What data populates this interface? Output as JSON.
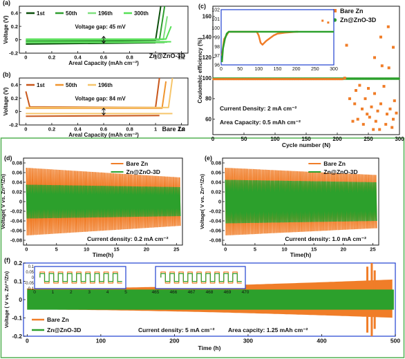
{
  "colors": {
    "bare": "#f07d28",
    "zno": "#2ca02c",
    "light_green": "#7ee07e",
    "mid_green": "#2e9e2e",
    "dark_green": "#0b4f0b",
    "lime": "#55e055",
    "dark_orange": "#c8561a",
    "orange": "#f0952e",
    "light_orange": "#f6c56a",
    "frame_green": "#52b052",
    "inset_blue": "#1f3fd0"
  },
  "chart_data": [
    {
      "panel": "(a)",
      "type": "line",
      "xlabel": "Areal Capacity (mAh cm⁻²)",
      "ylabel": "Voltage (V)",
      "xlim": [
        -0.05,
        1.25
      ],
      "ylim": [
        -0.2,
        0.5
      ],
      "xticks": [
        0.0,
        0.2,
        0.4,
        0.6,
        0.8,
        1.0,
        1.2
      ],
      "yticks": [
        -0.2,
        0.0,
        0.2,
        0.4
      ],
      "legend": [
        "1st",
        "50th",
        "196th",
        "300th"
      ],
      "annotation": "Voltage gap: 45 mV",
      "label": "Zn@ZnO-3D",
      "series": [
        {
          "name": "1st",
          "charge": [
            [
              0.0,
              -0.02
            ],
            [
              1.0,
              -0.005
            ],
            [
              1.04,
              0.5
            ]
          ],
          "discharge": [
            [
              0.0,
              -0.065
            ],
            [
              1.0,
              -0.045
            ]
          ]
        },
        {
          "name": "50th",
          "charge": [
            [
              0.0,
              -0.005
            ],
            [
              1.03,
              0.0
            ],
            [
              1.07,
              0.5
            ]
          ],
          "discharge": [
            [
              0.0,
              -0.045
            ],
            [
              1.07,
              -0.04
            ]
          ]
        },
        {
          "name": "196th",
          "charge": [
            [
              0.0,
              0.0
            ],
            [
              1.06,
              0.005
            ],
            [
              1.09,
              0.35
            ]
          ],
          "discharge": [
            [
              0.0,
              -0.04
            ],
            [
              1.09,
              -0.035
            ]
          ]
        },
        {
          "name": "300th",
          "charge": [
            [
              0.0,
              0.01
            ],
            [
              1.08,
              0.01
            ],
            [
              1.12,
              0.2
            ]
          ],
          "discharge": [
            [
              0.0,
              -0.03
            ],
            [
              1.12,
              -0.03
            ]
          ]
        }
      ]
    },
    {
      "panel": "(b)",
      "type": "line",
      "xlabel": "Areal Capacity (mAh cm⁻²)",
      "ylabel": "Voltage (V)",
      "xlim": [
        -0.05,
        1.25
      ],
      "ylim": [
        -0.2,
        0.5
      ],
      "xticks": [
        0.0,
        0.2,
        0.4,
        0.6,
        0.8,
        1.0,
        1.2
      ],
      "yticks": [
        -0.2,
        0.0,
        0.2,
        0.4
      ],
      "legend": [
        "1st",
        "50th",
        "196th"
      ],
      "annotation": "Voltage gap: 84 mV",
      "label": "Bare Zn",
      "series": [
        {
          "name": "1st",
          "charge": [
            [
              0.0,
              0.3
            ],
            [
              0.03,
              0.07
            ],
            [
              1.0,
              0.06
            ],
            [
              1.03,
              0.5
            ]
          ],
          "discharge": [
            [
              0.0,
              -0.07
            ],
            [
              1.03,
              -0.06
            ]
          ]
        },
        {
          "name": "50th",
          "charge": [
            [
              0.0,
              0.05
            ],
            [
              1.05,
              0.05
            ],
            [
              1.08,
              0.45
            ]
          ],
          "discharge": [
            [
              0.0,
              -0.03
            ],
            [
              1.08,
              -0.03
            ]
          ]
        },
        {
          "name": "196th",
          "charge": [
            [
              0.0,
              0.06
            ],
            [
              1.1,
              0.06
            ],
            [
              1.13,
              0.5
            ]
          ],
          "discharge": [
            [
              0.0,
              -0.03
            ],
            [
              1.13,
              -0.03
            ]
          ]
        }
      ]
    },
    {
      "panel": "(c)",
      "type": "scatter",
      "xlabel": "Cycle number (N)",
      "ylabel": "Coulombic efficiency (%)",
      "xlim": [
        0,
        300
      ],
      "ylim": [
        45,
        170
      ],
      "xticks": [
        0,
        50,
        100,
        150,
        200,
        250,
        300
      ],
      "yticks": [
        60,
        80,
        100,
        120,
        140,
        160
      ],
      "legend": [
        "Bare Zn",
        "Zn@ZnO-3D"
      ],
      "annotations": [
        "Current Density: 2 mA cm⁻²",
        "Area Capacity: 0.5 mAh cm⁻²"
      ],
      "series": [
        {
          "name": "Zn@ZnO-3D",
          "y_const": 99.5,
          "x_range": [
            1,
            300
          ]
        },
        {
          "name": "Bare Zn",
          "y_stable": 99.0,
          "x_stable": [
            1,
            210
          ],
          "scatter": [
            [
              212,
              100
            ],
            [
              215,
              132
            ],
            [
              220,
              80
            ],
            [
              225,
              58
            ],
            [
              228,
              75
            ],
            [
              230,
              88
            ],
            [
              233,
              60
            ],
            [
              236,
              93
            ],
            [
              240,
              70
            ],
            [
              242,
              55
            ],
            [
              245,
              80
            ],
            [
              248,
              65
            ],
            [
              250,
              90
            ],
            [
              252,
              62
            ],
            [
              255,
              72
            ],
            [
              258,
              50
            ],
            [
              260,
              85
            ],
            [
              262,
              58
            ],
            [
              265,
              68
            ],
            [
              268,
              50
            ],
            [
              270,
              75
            ],
            [
              272,
              112
            ],
            [
              275,
              92
            ],
            [
              278,
              55
            ],
            [
              280,
              65
            ],
            [
              283,
              110
            ],
            [
              285,
              70
            ],
            [
              288,
              52
            ],
            [
              290,
              60
            ],
            [
              292,
              78
            ],
            [
              295,
              66
            ],
            [
              270,
              140
            ],
            [
              282,
              150
            ],
            [
              260,
              120
            ],
            [
              290,
              130
            ]
          ]
        }
      ],
      "inset": {
        "xlim": [
          0,
          300
        ],
        "ylim": [
          96,
          102
        ],
        "xticks": [
          0,
          50,
          100,
          150,
          200,
          250,
          300
        ],
        "yticks": [
          96,
          97,
          98,
          99,
          100,
          101,
          102
        ],
        "zno": [
          [
            2,
            96.3
          ],
          [
            5,
            97.8
          ],
          [
            10,
            98.8
          ],
          [
            15,
            99.4
          ],
          [
            20,
            99.6
          ],
          [
            300,
            99.6
          ]
        ],
        "bare": [
          [
            2,
            97.0
          ],
          [
            8,
            98.8
          ],
          [
            20,
            99.6
          ],
          [
            95,
            99.6
          ],
          [
            100,
            99.2
          ],
          [
            105,
            98.4
          ],
          [
            110,
            98.2
          ],
          [
            120,
            98.6
          ],
          [
            140,
            99.2
          ],
          [
            150,
            99.4
          ],
          [
            170,
            99.5
          ],
          [
            200,
            99.6
          ],
          [
            205,
            99.6
          ]
        ],
        "bare_outliers": [
          [
            270,
            100.8
          ],
          [
            285,
            100.6
          ]
        ]
      }
    },
    {
      "panel": "(d)",
      "type": "line",
      "xlabel": "Time(h)",
      "ylabel": "Voltage( V vs. Zn²⁺/Zn)",
      "xlim": [
        -0.5,
        26
      ],
      "ylim": [
        -0.09,
        0.09
      ],
      "xticks": [
        0,
        5,
        10,
        15,
        20,
        25
      ],
      "yticks": [
        -0.08,
        -0.06,
        -0.04,
        -0.02,
        0.0,
        0.02,
        0.04,
        0.06,
        0.08
      ],
      "legend": [
        "Bare Zn",
        "Zn@ZnO-3D"
      ],
      "annotation": "Current density: 0.2 mA cm⁻²",
      "series": [
        {
          "name": "Bare Zn",
          "amplitude_start": 0.07,
          "amplitude_end": 0.05,
          "period_h": 0.5
        },
        {
          "name": "Zn@ZnO-3D",
          "amplitude_start": 0.035,
          "amplitude_end": 0.03,
          "period_h": 0.5
        }
      ]
    },
    {
      "panel": "(e)",
      "type": "line",
      "xlabel": "Time(h)",
      "ylabel": "Voltage( V vs. Zn²⁺/Zn)",
      "xlim": [
        -0.5,
        26
      ],
      "ylim": [
        -0.09,
        0.09
      ],
      "xticks": [
        0,
        5,
        10,
        15,
        20,
        25
      ],
      "yticks": [
        -0.08,
        -0.06,
        -0.04,
        -0.02,
        0.0,
        0.02,
        0.04,
        0.06,
        0.08
      ],
      "legend": [
        "Bare Zn",
        "Zn@ZnO-3D"
      ],
      "annotation": "Current density: 1.0 mA cm⁻²",
      "series": [
        {
          "name": "Bare Zn",
          "amplitude_start": 0.07,
          "amplitude_end": 0.055,
          "period_h": 0.5
        },
        {
          "name": "Zn@ZnO-3D",
          "amplitude_start": 0.045,
          "amplitude_end": 0.04,
          "period_h": 0.5
        }
      ]
    },
    {
      "panel": "(f)",
      "type": "line",
      "xlabel": "Time (h)",
      "ylabel": "Voltage ( V vs. Zn²⁺/Zn)",
      "xlim": [
        -5,
        500
      ],
      "ylim": [
        -0.2,
        0.2
      ],
      "xticks": [
        0,
        100,
        200,
        300,
        400,
        500
      ],
      "yticks": [
        -0.2,
        -0.1,
        0.0,
        0.1,
        0.2
      ],
      "legend": [
        "Bare Zn",
        "Zn@ZnO-3D"
      ],
      "annotations": [
        "Current density: 5 mA cm⁻²",
        "Area capcity: 1.25 mAh cm⁻²"
      ],
      "series": [
        {
          "name": "Bare Zn",
          "amplitude_start": 0.06,
          "amplitude_end": 0.11,
          "spikes": [
            [
              462,
              0.18
            ],
            [
              468,
              0.2
            ],
            [
              472,
              0.16
            ]
          ]
        },
        {
          "name": "Zn@ZnO-3D",
          "amplitude": 0.055
        }
      ],
      "inset1": {
        "xlim": [
          0,
          5
        ],
        "ylim": [
          -0.1,
          0.1
        ],
        "xticks": [
          0,
          1,
          2,
          3,
          4,
          5
        ],
        "yticks": [
          -0.1,
          -0.05,
          0.0,
          0.05,
          0.1
        ]
      },
      "inset2": {
        "xlim": [
          465,
          470
        ],
        "ylim": [
          -0.1,
          0.1
        ],
        "xticks": [
          465,
          466,
          467,
          468,
          469,
          470
        ]
      }
    }
  ]
}
